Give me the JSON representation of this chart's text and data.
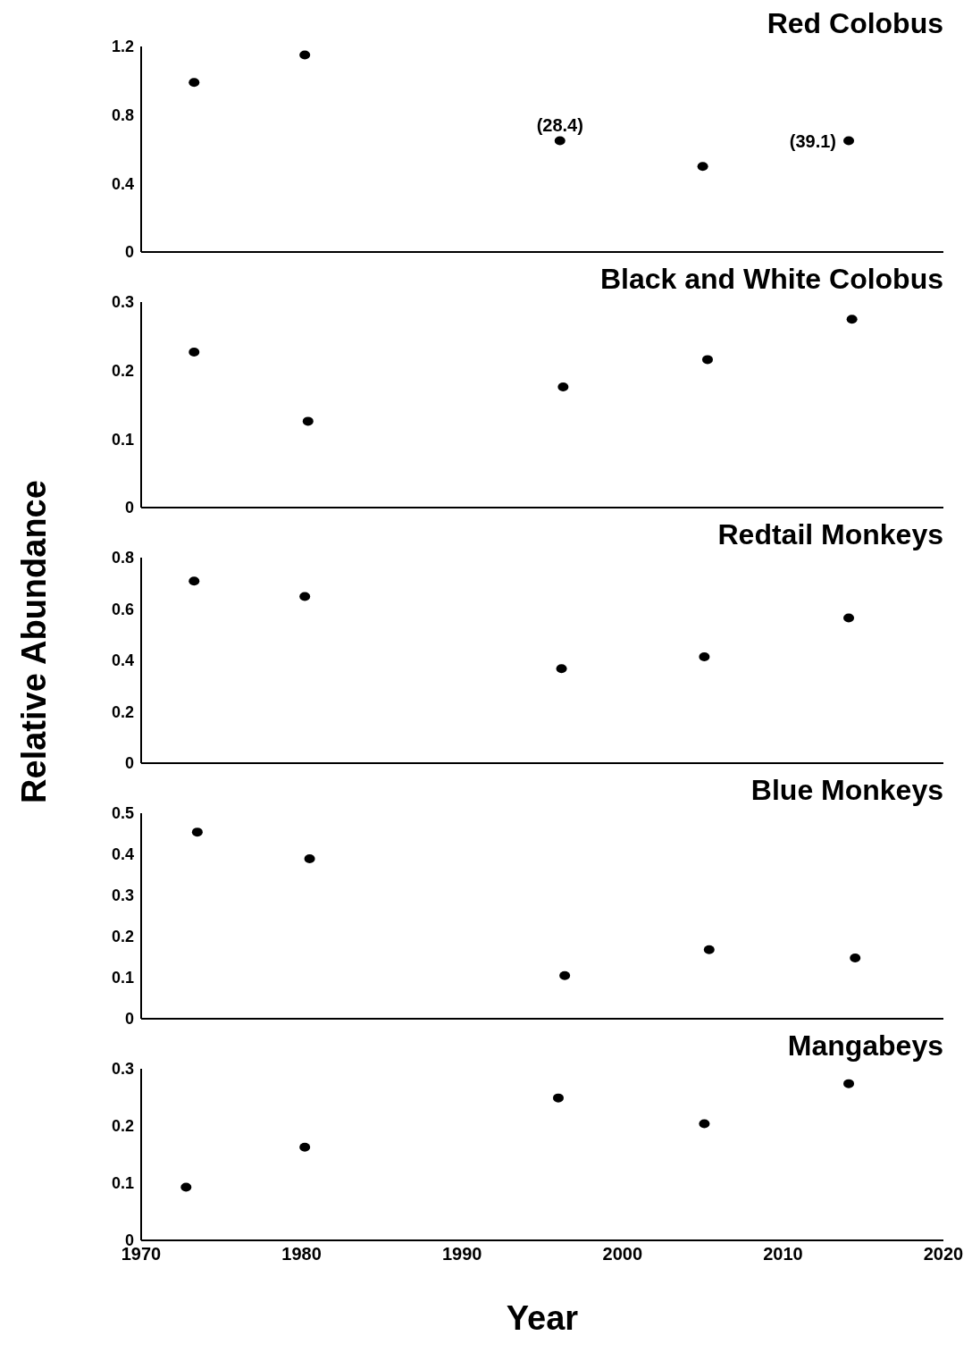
{
  "chart_data": [
    {
      "type": "scatter",
      "title": "Red Colobus",
      "x": [
        1973.3,
        1980.2,
        1996.1,
        2005,
        2014.1
      ],
      "values": [
        0.99,
        1.15,
        0.65,
        0.5,
        0.65
      ],
      "color": "#000000",
      "marker": "circle",
      "xlim": [
        1970,
        2020
      ],
      "ylim": [
        0,
        1.2
      ],
      "yticks": [
        0,
        0.4,
        0.8,
        1.2
      ],
      "grid": false,
      "legend": false,
      "tick_labels": "y",
      "annotations": [
        {
          "text": "(28.4)",
          "x": 1996.1,
          "y": 0.65
        },
        {
          "text": "(39.1)",
          "x": 2014.1,
          "y": 0.65
        }
      ]
    },
    {
      "type": "scatter",
      "title": "Black and White Colobus",
      "x": [
        1973.3,
        1980.4,
        1996.3,
        2005.3,
        2014.3
      ],
      "values": [
        0.227,
        0.126,
        0.176,
        0.216,
        0.275
      ],
      "color": "#000000",
      "marker": "circle",
      "xlim": [
        1970,
        2020
      ],
      "ylim": [
        0,
        0.3
      ],
      "yticks": [
        0,
        0.1,
        0.2,
        0.3
      ],
      "grid": false,
      "legend": false,
      "tick_labels": "y"
    },
    {
      "type": "scatter",
      "title": "Redtail Monkeys",
      "ylabel": "Relative Abundance",
      "x": [
        1973.3,
        1980.2,
        1996.2,
        2005.1,
        2014.1
      ],
      "values": [
        0.709,
        0.649,
        0.368,
        0.414,
        0.565
      ],
      "color": "#000000",
      "marker": "circle",
      "xlim": [
        1970,
        2020
      ],
      "ylim": [
        0,
        0.8
      ],
      "yticks": [
        0,
        0.2,
        0.4,
        0.6,
        0.8
      ],
      "grid": false,
      "legend": false,
      "tick_labels": "y"
    },
    {
      "type": "scatter",
      "title": "Blue Monkeys",
      "x": [
        1973.5,
        1980.5,
        1996.4,
        2005.4,
        2014.5
      ],
      "values": [
        0.454,
        0.389,
        0.105,
        0.168,
        0.148
      ],
      "color": "#000000",
      "marker": "circle",
      "xlim": [
        1970,
        2020
      ],
      "ylim": [
        0,
        0.5
      ],
      "yticks": [
        0,
        0.1,
        0.2,
        0.3,
        0.4,
        0.5
      ],
      "grid": false,
      "legend": false,
      "tick_labels": "y"
    },
    {
      "type": "scatter",
      "title": "Mangabeys",
      "xlabel": "Year",
      "x": [
        1972.8,
        1980.2,
        1996,
        2005.1,
        2014.1
      ],
      "values": [
        0.093,
        0.163,
        0.249,
        0.204,
        0.274
      ],
      "color": "#000000",
      "marker": "circle",
      "xlim": [
        1970,
        2020
      ],
      "xticks": [
        1970,
        1980,
        1990,
        2000,
        2010,
        2020
      ],
      "ylim": [
        0,
        0.3
      ],
      "yticks": [
        0,
        0.1,
        0.2,
        0.3
      ],
      "grid": false,
      "legend": false
    }
  ]
}
